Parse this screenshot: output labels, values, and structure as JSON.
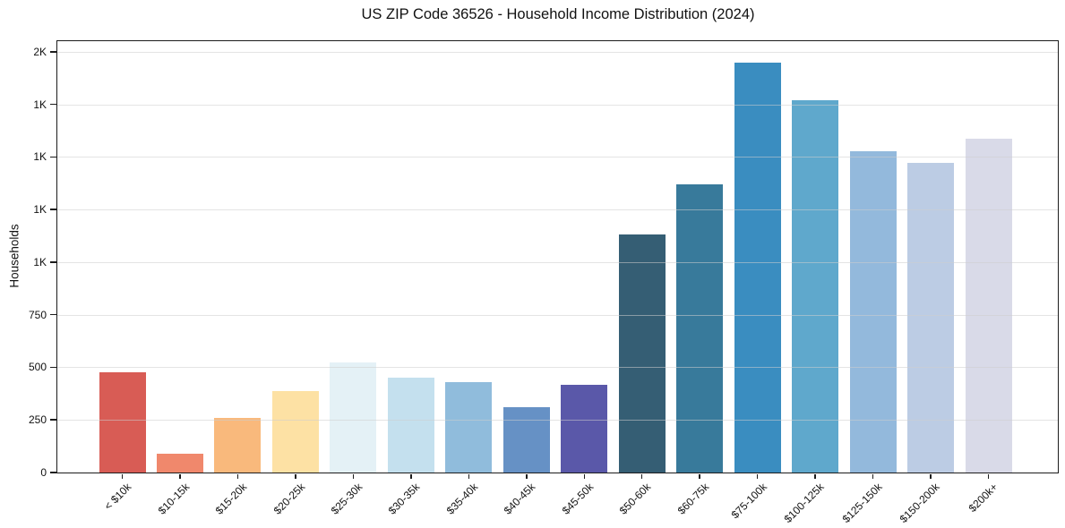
{
  "chart_data": {
    "type": "bar",
    "title": "US ZIP Code 36526 - Household Income Distribution (2024)",
    "xlabel": "",
    "ylabel": "Households",
    "categories": [
      "< $10k",
      "$10-15k",
      "$15-20k",
      "$20-25k",
      "$25-30k",
      "$30-35k",
      "$35-40k",
      "$40-45k",
      "$45-50k",
      "$50-60k",
      "$60-75k",
      "$75-100k",
      "$100-125k",
      "$125-150k",
      "$150-200k",
      "$200k+"
    ],
    "values": [
      475,
      90,
      260,
      385,
      525,
      450,
      430,
      310,
      415,
      1130,
      1370,
      1950,
      1770,
      1525,
      1470,
      1585
    ],
    "bar_colors": [
      "#d85c55",
      "#f0886c",
      "#f9b97c",
      "#fde1a4",
      "#e4f1f6",
      "#c4e0ee",
      "#90bcdc",
      "#6691c5",
      "#5a58a9",
      "#355e74",
      "#387a9b",
      "#3a8dc0",
      "#5fa8cc",
      "#93b9dc",
      "#bccce4",
      "#d9dae8"
    ],
    "ylim": [
      0,
      2050
    ],
    "yticks": [
      {
        "value": 0,
        "label": "0"
      },
      {
        "value": 250,
        "label": "250"
      },
      {
        "value": 500,
        "label": "500"
      },
      {
        "value": 750,
        "label": "750"
      },
      {
        "value": 1000,
        "label": "1K"
      },
      {
        "value": 1250,
        "label": "1K"
      },
      {
        "value": 1500,
        "label": "1K"
      },
      {
        "value": 1750,
        "label": "1K"
      },
      {
        "value": 2000,
        "label": "2K"
      }
    ],
    "grid": "horizontal",
    "legend": "none"
  },
  "colors": {
    "background": "#ffffff",
    "spine": "#1c1c1c",
    "gridline": "#e3e3e3",
    "text": "#111111"
  }
}
